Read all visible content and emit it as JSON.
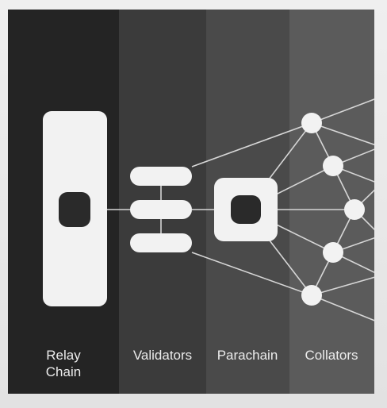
{
  "diagram": {
    "columns": [
      {
        "id": "relay",
        "label_line1": "Relay",
        "label_line2": "Chain"
      },
      {
        "id": "validators",
        "label_line1": "Validators"
      },
      {
        "id": "parachain",
        "label_line1": "Parachain"
      },
      {
        "id": "collators",
        "label_line1": "Collators"
      }
    ]
  },
  "colors": {
    "node_fill": "#f2f2f2",
    "node_inner": "#2a2a2a",
    "link_stroke": "#d6d6d6",
    "label_text": "#ececec"
  }
}
